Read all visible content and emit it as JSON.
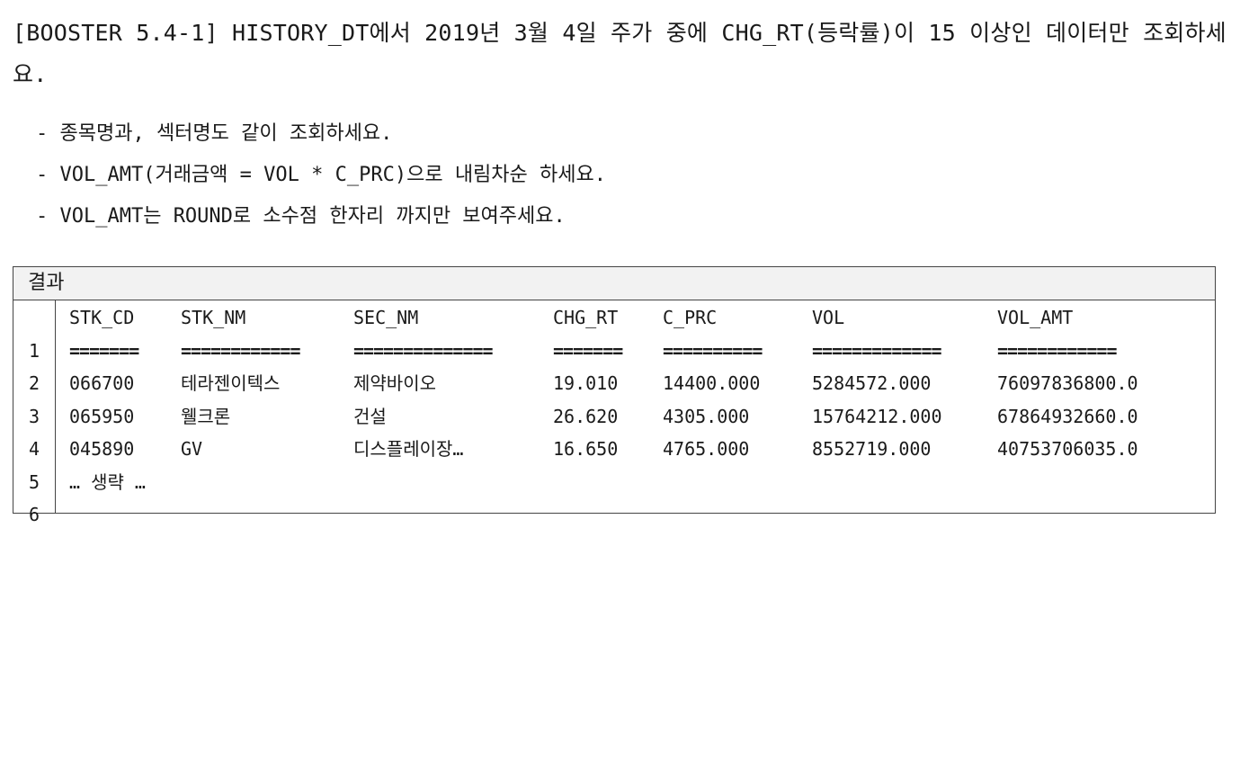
{
  "instruction": "[BOOSTER 5.4-1] HISTORY_DT에서 2019년 3월 4일 주가 중에 CHG_RT(등락률)이 15 이상인 데이터만 조회하세요.",
  "bullets": [
    "- 종목명과, 섹터명도 같이 조회하세요.",
    "- VOL_AMT(거래금액 = VOL * C_PRC)으로 내림차순 하세요.",
    "- VOL_AMT는 ROUND로 소수점 한자리 까지만 보여주세요."
  ],
  "result": {
    "title": "결과",
    "row_numbers": [
      "1",
      "2",
      "3",
      "4",
      "5",
      "6"
    ],
    "columns": [
      "STK_CD",
      "STK_NM",
      "SEC_NM",
      "CHG_RT",
      "C_PRC",
      "VOL",
      "VOL_AMT"
    ],
    "separators": [
      "=======",
      "============",
      "==============",
      "=======",
      "==========",
      "=============",
      "============"
    ],
    "rows": [
      [
        "066700",
        "테라젠이텍스",
        "제약바이오",
        "19.010",
        "14400.000",
        "5284572.000",
        "76097836800.0"
      ],
      [
        "065950",
        "웰크론",
        "건설",
        "26.620",
        "4305.000",
        "15764212.000",
        "67864932660.0"
      ],
      [
        "045890",
        "GV",
        "디스플레이장…",
        "16.650",
        "4765.000",
        "8552719.000",
        "40753706035.0"
      ]
    ],
    "omitted_text": "… 생략 …"
  }
}
